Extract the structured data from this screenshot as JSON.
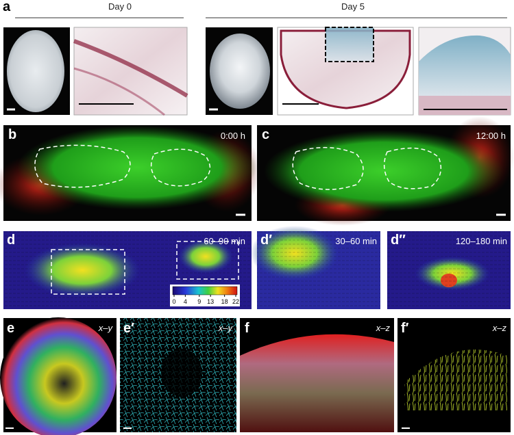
{
  "panels": {
    "a": {
      "label": "a",
      "day0": "Day 0",
      "day5": "Day 5"
    },
    "b": {
      "label": "b",
      "time": "0:00 h"
    },
    "c": {
      "label": "c",
      "time": "12:00 h"
    },
    "d": {
      "label": "d",
      "time": "60–90 min"
    },
    "d1": {
      "label": "d′",
      "time": "30–60 min"
    },
    "d2": {
      "label": "d″",
      "time": "120–180 min"
    },
    "e": {
      "label": "e",
      "axes": "x–y"
    },
    "e1": {
      "label": "e′",
      "axes": "x–y"
    },
    "f": {
      "label": "f",
      "axes": "x–z"
    },
    "f1": {
      "label": "f′",
      "axes": "x–z"
    }
  },
  "colorbar": {
    "ticks": [
      0,
      4,
      9,
      13,
      18,
      22
    ]
  }
}
